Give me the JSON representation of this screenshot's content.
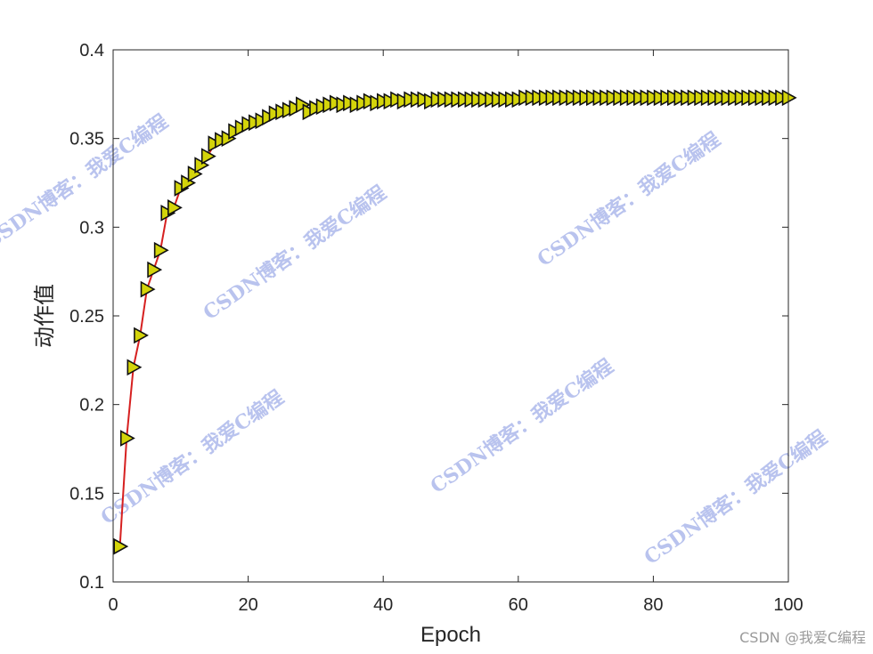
{
  "chart_data": {
    "type": "line",
    "title": "",
    "xlabel": "Epoch",
    "ylabel": "动作值",
    "xlim": [
      0,
      100
    ],
    "ylim": [
      0.1,
      0.4
    ],
    "xticks": [
      "0",
      "20",
      "40",
      "60",
      "80",
      "100"
    ],
    "yticks": [
      "0.1",
      "0.15",
      "0.2",
      "0.25",
      "0.3",
      "0.35",
      "0.4"
    ],
    "grid": false,
    "legend": "none",
    "line_color": "#d62020",
    "marker": "triangle-right",
    "marker_fill": "#d4d40a",
    "marker_edge": "#111111",
    "series": [
      {
        "x": [
          1,
          2,
          3,
          4,
          5,
          6,
          7,
          8,
          9,
          10,
          11,
          12,
          13,
          14,
          15,
          16,
          17,
          18,
          19,
          20,
          21,
          22,
          23,
          24,
          25,
          26,
          27,
          28,
          29,
          30,
          31,
          32,
          33,
          34,
          35,
          36,
          37,
          38,
          39,
          40,
          41,
          42,
          43,
          44,
          45,
          46,
          47,
          48,
          49,
          50,
          51,
          52,
          53,
          54,
          55,
          56,
          57,
          58,
          59,
          60,
          61,
          62,
          63,
          64,
          65,
          66,
          67,
          68,
          69,
          70,
          71,
          72,
          73,
          74,
          75,
          76,
          77,
          78,
          79,
          80,
          81,
          82,
          83,
          84,
          85,
          86,
          87,
          88,
          89,
          90,
          91,
          92,
          93,
          94,
          95,
          96,
          97,
          98,
          99,
          100
        ],
        "values": [
          0.12,
          0.181,
          0.221,
          0.239,
          0.265,
          0.276,
          0.287,
          0.308,
          0.311,
          0.322,
          0.325,
          0.33,
          0.335,
          0.34,
          0.347,
          0.349,
          0.35,
          0.354,
          0.356,
          0.358,
          0.359,
          0.36,
          0.362,
          0.364,
          0.365,
          0.366,
          0.367,
          0.369,
          0.365,
          0.367,
          0.368,
          0.369,
          0.37,
          0.369,
          0.37,
          0.369,
          0.37,
          0.371,
          0.37,
          0.371,
          0.371,
          0.372,
          0.371,
          0.372,
          0.372,
          0.372,
          0.371,
          0.372,
          0.372,
          0.372,
          0.372,
          0.372,
          0.372,
          0.372,
          0.372,
          0.372,
          0.372,
          0.372,
          0.372,
          0.372,
          0.373,
          0.373,
          0.373,
          0.373,
          0.373,
          0.373,
          0.373,
          0.373,
          0.373,
          0.373,
          0.373,
          0.373,
          0.373,
          0.373,
          0.373,
          0.373,
          0.373,
          0.373,
          0.373,
          0.373,
          0.373,
          0.373,
          0.373,
          0.373,
          0.373,
          0.373,
          0.373,
          0.373,
          0.373,
          0.373,
          0.373,
          0.373,
          0.373,
          0.373,
          0.373,
          0.373,
          0.373,
          0.373,
          0.373,
          0.373
        ]
      }
    ]
  },
  "watermark": {
    "text": "CSDN博客：我爱C编程",
    "color": "#b9c3ee"
  },
  "footer": {
    "text": "CSDN @我爱C编程"
  }
}
